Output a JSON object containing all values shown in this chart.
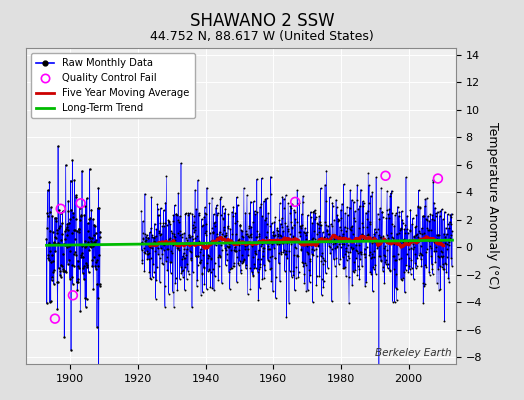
{
  "title": "SHAWANO 2 SSW",
  "subtitle": "44.752 N, 88.617 W (United States)",
  "ylabel": "Temperature Anomaly (°C)",
  "watermark": "Berkeley Earth",
  "xlim": [
    1887,
    2014
  ],
  "ylim": [
    -8.5,
    14.5
  ],
  "yticks": [
    -8,
    -6,
    -4,
    -2,
    0,
    2,
    4,
    6,
    8,
    10,
    12,
    14
  ],
  "xticks": [
    1900,
    1920,
    1940,
    1960,
    1980,
    2000
  ],
  "start_year": 1893,
  "end_year": 2013,
  "seed": 17,
  "raw_color": "#0000ff",
  "moving_avg_color": "#cc0000",
  "trend_color": "#00bb00",
  "qc_color": "#ff00ff",
  "background_color": "#e0e0e0",
  "grid_color": "#ffffff",
  "plot_bg": "#f0f0f0",
  "title_fontsize": 12,
  "subtitle_fontsize": 9,
  "tick_fontsize": 8,
  "ylabel_fontsize": 9
}
